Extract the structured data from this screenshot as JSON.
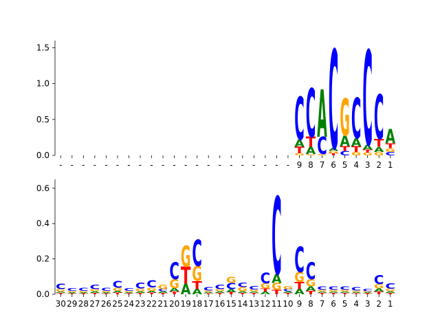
{
  "colors": {
    "A": "#008000",
    "C": "#0000ff",
    "G": "#ffa500",
    "T": "#ff0000",
    "axis": "#000000"
  },
  "chart_data": [
    {
      "type": "sequence-logo",
      "title": "",
      "xlabel": "",
      "ylabel": "",
      "ylim": [
        0,
        1.6
      ],
      "yticks": [
        0.0,
        0.5,
        1.0,
        1.5
      ],
      "ytick_labels": [
        "0.0",
        "0.5",
        "1.0",
        "1.5"
      ],
      "grid": false,
      "legend": "none",
      "positions": [
        "-",
        "-",
        "-",
        "-",
        "-",
        "-",
        "-",
        "-",
        "-",
        "-",
        "-",
        "-",
        "-",
        "-",
        "-",
        "-",
        "-",
        "-",
        "-",
        "-",
        "-",
        "9",
        "8",
        "7",
        "6",
        "5",
        "4",
        "3",
        "2",
        "1"
      ],
      "stacks": [
        [],
        [],
        [],
        [],
        [],
        [],
        [],
        [],
        [],
        [],
        [],
        [],
        [],
        [],
        [],
        [],
        [],
        [],
        [],
        [],
        [],
        [
          [
            "G",
            0.03
          ],
          [
            "T",
            0.09
          ],
          [
            "A",
            0.1
          ],
          [
            "C",
            0.6
          ]
        ],
        [
          [
            "G",
            0.02
          ],
          [
            "A",
            0.1
          ],
          [
            "T",
            0.14
          ],
          [
            "C",
            0.68
          ]
        ],
        [
          [
            "G",
            0.02
          ],
          [
            "C",
            0.24
          ],
          [
            "A",
            0.66
          ]
        ],
        [
          [
            "T",
            0.03
          ],
          [
            "G",
            0.03
          ],
          [
            "A",
            0.04
          ],
          [
            "C",
            1.38
          ]
        ],
        [
          [
            "C",
            0.06
          ],
          [
            "T",
            0.07
          ],
          [
            "A",
            0.15
          ],
          [
            "G",
            0.52
          ]
        ],
        [
          [
            "G",
            0.05
          ],
          [
            "T",
            0.08
          ],
          [
            "A",
            0.11
          ],
          [
            "C",
            0.56
          ]
        ],
        [
          [
            "G",
            0.04
          ],
          [
            "T",
            0.04
          ],
          [
            "A",
            0.07
          ],
          [
            "C",
            1.32
          ]
        ],
        [
          [
            "G",
            0.05
          ],
          [
            "A",
            0.07
          ],
          [
            "T",
            0.11
          ],
          [
            "C",
            0.62
          ]
        ],
        [
          [
            "C",
            0.05
          ],
          [
            "G",
            0.05
          ],
          [
            "T",
            0.07
          ],
          [
            "A",
            0.2
          ]
        ]
      ]
    },
    {
      "type": "sequence-logo",
      "title": "",
      "xlabel": "",
      "ylabel": "",
      "ylim": [
        0,
        0.65
      ],
      "yticks": [
        0.0,
        0.2,
        0.4,
        0.6
      ],
      "ytick_labels": [
        "0.0",
        "0.2",
        "0.4",
        "0.6"
      ],
      "grid": false,
      "legend": "none",
      "positions": [
        "30",
        "29",
        "28",
        "27",
        "26",
        "25",
        "24",
        "23",
        "22",
        "21",
        "20",
        "19",
        "18",
        "17",
        "16",
        "15",
        "14",
        "13",
        "12",
        "11",
        "10",
        "9",
        "8",
        "7",
        "6",
        "5",
        "4",
        "3",
        "2",
        "1"
      ],
      "stacks": [
        [
          [
            "T",
            0.008
          ],
          [
            "A",
            0.008
          ],
          [
            "G",
            0.014
          ],
          [
            "C",
            0.03
          ]
        ],
        [
          [
            "T",
            0.006
          ],
          [
            "A",
            0.006
          ],
          [
            "G",
            0.007
          ],
          [
            "C",
            0.016
          ]
        ],
        [
          [
            "T",
            0.006
          ],
          [
            "A",
            0.006
          ],
          [
            "G",
            0.007
          ],
          [
            "C",
            0.018
          ]
        ],
        [
          [
            "T",
            0.008
          ],
          [
            "A",
            0.009
          ],
          [
            "G",
            0.013
          ],
          [
            "C",
            0.024
          ]
        ],
        [
          [
            "T",
            0.006
          ],
          [
            "A",
            0.006
          ],
          [
            "G",
            0.008
          ],
          [
            "C",
            0.018
          ]
        ],
        [
          [
            "T",
            0.009
          ],
          [
            "A",
            0.01
          ],
          [
            "G",
            0.018
          ],
          [
            "C",
            0.038
          ]
        ],
        [
          [
            "T",
            0.006
          ],
          [
            "A",
            0.006
          ],
          [
            "G",
            0.008
          ],
          [
            "C",
            0.014
          ]
        ],
        [
          [
            "T",
            0.008
          ],
          [
            "A",
            0.01
          ],
          [
            "G",
            0.015
          ],
          [
            "C",
            0.032
          ]
        ],
        [
          [
            "T",
            0.009
          ],
          [
            "A",
            0.011
          ],
          [
            "G",
            0.018
          ],
          [
            "C",
            0.04
          ]
        ],
        [
          [
            "T",
            0.008
          ],
          [
            "A",
            0.009
          ],
          [
            "C",
            0.012
          ],
          [
            "G",
            0.026
          ]
        ],
        [
          [
            "T",
            0.015
          ],
          [
            "A",
            0.02
          ],
          [
            "G",
            0.05
          ],
          [
            "C",
            0.095
          ]
        ],
        [
          [
            "A",
            0.06
          ],
          [
            "T",
            0.095
          ],
          [
            "G",
            0.12
          ]
        ],
        [
          [
            "A",
            0.03
          ],
          [
            "T",
            0.045
          ],
          [
            "G",
            0.085
          ],
          [
            "C",
            0.15
          ]
        ],
        [
          [
            "T",
            0.006
          ],
          [
            "A",
            0.007
          ],
          [
            "G",
            0.008
          ],
          [
            "C",
            0.021
          ]
        ],
        [
          [
            "T",
            0.008
          ],
          [
            "A",
            0.01
          ],
          [
            "G",
            0.012
          ],
          [
            "C",
            0.026
          ]
        ],
        [
          [
            "T",
            0.012
          ],
          [
            "A",
            0.018
          ],
          [
            "C",
            0.035
          ],
          [
            "G",
            0.035
          ]
        ],
        [
          [
            "T",
            0.008
          ],
          [
            "A",
            0.01
          ],
          [
            "G",
            0.022
          ],
          [
            "C",
            0.026
          ]
        ],
        [
          [
            "T",
            0.007
          ],
          [
            "A",
            0.008
          ],
          [
            "G",
            0.012
          ],
          [
            "C",
            0.02
          ]
        ],
        [
          [
            "A",
            0.015
          ],
          [
            "T",
            0.018
          ],
          [
            "G",
            0.03
          ],
          [
            "C",
            0.06
          ]
        ],
        [
          [
            "T",
            0.025
          ],
          [
            "G",
            0.04
          ],
          [
            "A",
            0.05
          ],
          [
            "C",
            0.44
          ]
        ],
        [
          [
            "T",
            0.008
          ],
          [
            "A",
            0.009
          ],
          [
            "C",
            0.012
          ],
          [
            "G",
            0.018
          ]
        ],
        [
          [
            "A",
            0.03
          ],
          [
            "T",
            0.04
          ],
          [
            "G",
            0.055
          ],
          [
            "C",
            0.145
          ]
        ],
        [
          [
            "T",
            0.02
          ],
          [
            "A",
            0.025
          ],
          [
            "G",
            0.04
          ],
          [
            "C",
            0.095
          ]
        ],
        [
          [
            "T",
            0.007
          ],
          [
            "A",
            0.008
          ],
          [
            "G",
            0.01
          ],
          [
            "C",
            0.02
          ]
        ],
        [
          [
            "T",
            0.007
          ],
          [
            "A",
            0.008
          ],
          [
            "G",
            0.01
          ],
          [
            "C",
            0.021
          ]
        ],
        [
          [
            "T",
            0.007
          ],
          [
            "A",
            0.008
          ],
          [
            "G",
            0.01
          ],
          [
            "C",
            0.021
          ]
        ],
        [
          [
            "T",
            0.006
          ],
          [
            "A",
            0.007
          ],
          [
            "G",
            0.008
          ],
          [
            "C",
            0.019
          ]
        ],
        [
          [
            "T",
            0.005
          ],
          [
            "A",
            0.006
          ],
          [
            "G",
            0.007
          ],
          [
            "C",
            0.012
          ]
        ],
        [
          [
            "T",
            0.015
          ],
          [
            "A",
            0.018
          ],
          [
            "G",
            0.025
          ],
          [
            "C",
            0.05
          ]
        ],
        [
          [
            "T",
            0.008
          ],
          [
            "A",
            0.01
          ],
          [
            "G",
            0.014
          ],
          [
            "C",
            0.03
          ]
        ]
      ]
    }
  ]
}
